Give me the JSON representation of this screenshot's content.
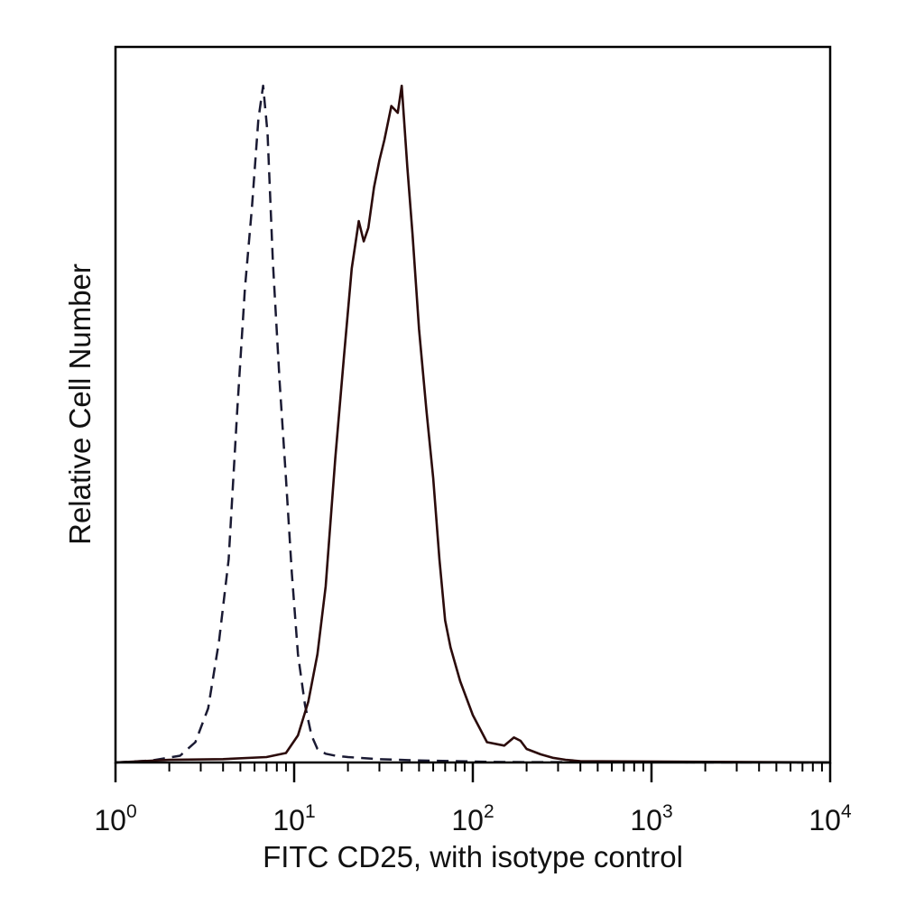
{
  "chart_data": {
    "type": "line",
    "title": "",
    "xlabel": "FITC CD25, with isotype control",
    "ylabel": "Relative Cell Number",
    "x_scale": "log",
    "xlim": [
      1,
      10000
    ],
    "ylim": [
      0,
      100
    ],
    "grid": false,
    "x_ticks": [
      {
        "value": 1,
        "base": "10",
        "exp": "0"
      },
      {
        "value": 10,
        "base": "10",
        "exp": "1"
      },
      {
        "value": 100,
        "base": "10",
        "exp": "2"
      },
      {
        "value": 1000,
        "base": "10",
        "exp": "3"
      },
      {
        "value": 10000,
        "base": "10",
        "exp": "4"
      }
    ],
    "series": [
      {
        "style": "dashed",
        "color": "#1a1a33",
        "x": [
          1,
          1.6,
          2.3,
          2.8,
          3.3,
          3.8,
          4.3,
          4.8,
          5.3,
          5.8,
          6.3,
          6.7,
          7.1,
          7.6,
          8.3,
          9.0,
          9.7,
          10.5,
          11.5,
          12.5,
          13.5,
          15,
          17,
          20,
          30,
          50,
          80,
          120,
          200,
          10000
        ],
        "y": [
          0,
          0.3,
          1.0,
          3.0,
          8.0,
          18.0,
          30.0,
          52.0,
          70.0,
          82.0,
          95.0,
          100.0,
          93.0,
          74.0,
          56.0,
          42.0,
          28.0,
          16.0,
          8.5,
          4.0,
          2.0,
          1.3,
          1.0,
          0.8,
          0.5,
          0.3,
          0.2,
          0.1,
          0.05,
          0
        ]
      },
      {
        "style": "solid",
        "color": "#2b0b0b",
        "x": [
          1,
          2,
          4,
          7,
          9,
          10.5,
          12,
          13.5,
          15,
          17,
          19,
          21,
          23,
          24.5,
          26,
          28,
          30,
          32,
          35,
          38,
          40,
          43,
          46,
          50,
          55,
          60,
          65,
          70,
          75,
          85,
          100,
          120,
          150,
          170,
          185,
          200,
          240,
          280,
          330,
          400,
          10000
        ],
        "y": [
          0,
          0.4,
          0.5,
          0.8,
          1.4,
          4.0,
          9.0,
          16.0,
          26.0,
          45.0,
          60.0,
          73.0,
          80.0,
          77.0,
          79.0,
          85.0,
          89.0,
          92.0,
          97.0,
          96.0,
          100.0,
          88.0,
          78.0,
          64.0,
          52.0,
          42.0,
          30.0,
          21.0,
          17.0,
          12.0,
          7.0,
          3.0,
          2.5,
          3.7,
          3.2,
          2.0,
          1.2,
          0.7,
          0.4,
          0.2,
          0
        ]
      }
    ]
  }
}
